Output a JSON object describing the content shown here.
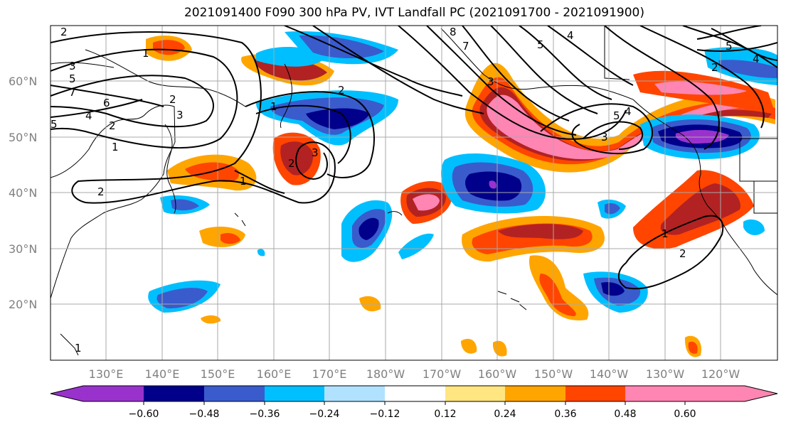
{
  "title": "2021091400 F090 300 hPa PV, IVT Landfall PC (2021091700 - 2021091900)",
  "lat_labels": [
    "60°N",
    "50°N",
    "40°N",
    "30°N",
    "20°N"
  ],
  "lon_labels": [
    "130°E",
    "140°E",
    "150°E",
    "160°E",
    "170°E",
    "180°W",
    "170°W",
    "160°W",
    "150°W",
    "140°W",
    "130°W",
    "120°W"
  ],
  "colorbar": {
    "colors": [
      "#9932cc",
      "#00008b",
      "#3a5bcc",
      "#00bfff",
      "#b0e2ff",
      "#ffffff",
      "#ffe680",
      "#ffa500",
      "#ff4500",
      "#b22222",
      "#ff85b3"
    ],
    "tick_labels": [
      "−0.60",
      "−0.48",
      "−0.36",
      "−0.24",
      "−0.12",
      "0.12",
      "0.24",
      "0.36",
      "0.48",
      "0.60"
    ]
  },
  "contour_labels": [
    "2",
    "1",
    "3",
    "5",
    "7",
    "6",
    "4",
    "5",
    "2",
    "1",
    "2",
    "2",
    "3",
    "3",
    "2",
    "1",
    "8",
    "7",
    "5",
    "4",
    "3",
    "5",
    "4",
    "3",
    "2",
    "1",
    "1",
    "2",
    "5",
    "4",
    "2",
    "1"
  ]
}
